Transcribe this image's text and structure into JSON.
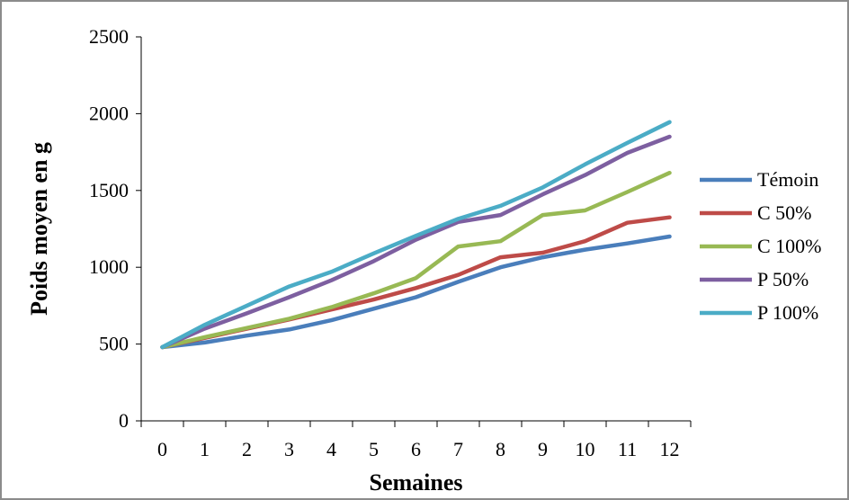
{
  "chart_data": {
    "type": "line",
    "title": "",
    "xlabel": "Semaines",
    "ylabel": "Poids moyen en g",
    "x": [
      0,
      1,
      2,
      3,
      4,
      5,
      6,
      7,
      8,
      9,
      10,
      11,
      12
    ],
    "x_tick_labels": [
      "0",
      "1",
      "2",
      "3",
      "4",
      "5",
      "6",
      "7",
      "8",
      "9",
      "10",
      "11",
      "12"
    ],
    "ylim": [
      0,
      2500
    ],
    "y_ticks": [
      0,
      500,
      1000,
      1500,
      2000,
      2500
    ],
    "y_tick_labels": [
      "0",
      "500",
      "1000",
      "1500",
      "2000",
      "2500"
    ],
    "grid": false,
    "legend_position": "right",
    "series": [
      {
        "name": "Témoin",
        "color": "#4a7ebb",
        "values": [
          480,
          510,
          555,
          595,
          655,
          730,
          805,
          905,
          1000,
          1065,
          1115,
          1155,
          1200
        ]
      },
      {
        "name": "C 50%",
        "color": "#be4b48",
        "values": [
          480,
          540,
          600,
          660,
          725,
          790,
          865,
          950,
          1065,
          1095,
          1170,
          1290,
          1325
        ]
      },
      {
        "name": "C 100%",
        "color": "#98b954",
        "values": [
          480,
          545,
          605,
          665,
          740,
          830,
          930,
          1135,
          1170,
          1340,
          1370,
          1490,
          1615
        ]
      },
      {
        "name": "P 50%",
        "color": "#7d5fa0",
        "values": [
          480,
          600,
          700,
          805,
          915,
          1040,
          1180,
          1295,
          1340,
          1475,
          1600,
          1745,
          1850
        ]
      },
      {
        "name": "P 100%",
        "color": "#4bacc6",
        "values": [
          480,
          625,
          750,
          875,
          970,
          1090,
          1205,
          1315,
          1400,
          1520,
          1670,
          1810,
          1945
        ]
      }
    ]
  }
}
